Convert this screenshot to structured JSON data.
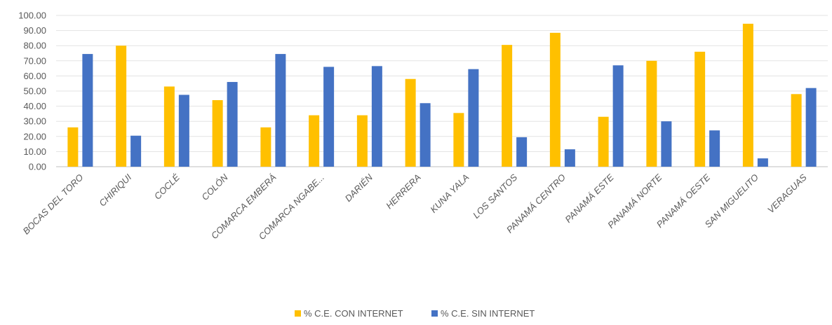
{
  "chart_data": {
    "type": "bar",
    "title": "",
    "xlabel": "",
    "ylabel": "",
    "ylim": [
      0,
      100
    ],
    "yticks": [
      "0.00",
      "10.00",
      "20.00",
      "30.00",
      "40.00",
      "50.00",
      "60.00",
      "70.00",
      "80.00",
      "90.00",
      "100.00"
    ],
    "grid": true,
    "legend_position": "bottom",
    "categories": [
      "BOCAS DEL TORO",
      "CHIRIQUI",
      "COCLÉ",
      "COLÓN",
      "COMARCA EMBERÁ",
      "COMARCA NGABE...",
      "DARIÉN",
      "HERRERA",
      "KUNA YALA",
      "LOS SANTOS",
      "PANAMÁ CENTRO",
      "PANAMÁ ESTE",
      "PANAMÁ NORTE",
      "PANAMÁ OESTE",
      "SAN MIGUELITO",
      "VERAGUAS"
    ],
    "series": [
      {
        "name": "% C.E. CON INTERNET",
        "color": "#FFC000",
        "values": [
          26,
          80,
          53,
          44,
          26,
          34,
          34,
          58,
          35.5,
          80.5,
          88.5,
          33,
          70,
          76,
          94.5,
          48
        ]
      },
      {
        "name": "% C.E. SIN INTERNET",
        "color": "#4472C4",
        "values": [
          74.5,
          20.5,
          47.5,
          56,
          74.5,
          66,
          66.5,
          42,
          64.5,
          19.5,
          11.5,
          67,
          30,
          24,
          5.5,
          52
        ]
      }
    ]
  }
}
